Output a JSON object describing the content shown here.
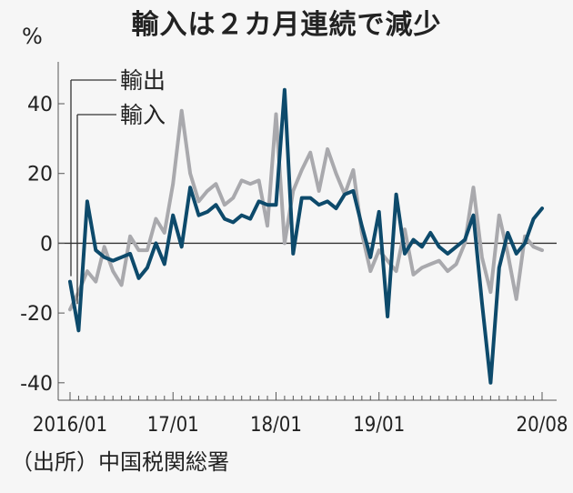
{
  "title": "輸入は２カ月連続で減少",
  "source": "（出所）中国税関総署",
  "chart_data": {
    "type": "line",
    "ylabel": "%",
    "ylim": [
      -45,
      52
    ],
    "yticks": [
      -40,
      -20,
      0,
      20,
      40
    ],
    "ytick_labels": [
      "-40",
      "-20",
      "0",
      "20",
      "40"
    ],
    "xticks": [
      {
        "label": "2016/01",
        "index": 0
      },
      {
        "label": "17/01",
        "index": 12
      },
      {
        "label": "18/01",
        "index": 24
      },
      {
        "label": "19/01",
        "index": 36
      },
      {
        "label": "20/08",
        "index": 55
      }
    ],
    "x": [
      "2016/01",
      "2016/02",
      "2016/03",
      "2016/04",
      "2016/05",
      "2016/06",
      "2016/07",
      "2016/08",
      "2016/09",
      "2016/10",
      "2016/11",
      "2016/12",
      "2017/01",
      "2017/02",
      "2017/03",
      "2017/04",
      "2017/05",
      "2017/06",
      "2017/07",
      "2017/08",
      "2017/09",
      "2017/10",
      "2017/11",
      "2017/12",
      "2018/01",
      "2018/02",
      "2018/03",
      "2018/04",
      "2018/05",
      "2018/06",
      "2018/07",
      "2018/08",
      "2018/09",
      "2018/10",
      "2018/11",
      "2018/12",
      "2019/01",
      "2019/02",
      "2019/03",
      "2019/04",
      "2019/05",
      "2019/06",
      "2019/07",
      "2019/08",
      "2019/09",
      "2019/10",
      "2019/11",
      "2019/12",
      "2020/01",
      "2020/02",
      "2020/03",
      "2020/04",
      "2020/05",
      "2020/06",
      "2020/07",
      "2020/08"
    ],
    "series": [
      {
        "name": "輸出",
        "color": "#0d4a6b",
        "values": [
          -11,
          -25,
          12,
          -2,
          -4,
          -5,
          -4,
          -3,
          -10,
          -7,
          0,
          -6,
          8,
          -1,
          16,
          8,
          9,
          11,
          7,
          6,
          8,
          7,
          12,
          11,
          11,
          44,
          -3,
          13,
          13,
          11,
          12,
          10,
          14,
          15,
          5,
          -4,
          9,
          -21,
          14,
          -3,
          1,
          -1,
          3,
          -1,
          -3,
          -1,
          1,
          8,
          -17,
          -40,
          -7,
          3,
          -3,
          0,
          7,
          10
        ]
      },
      {
        "name": "輸入",
        "color": "#a9a9ad",
        "values": [
          -19,
          -14,
          -8,
          -11,
          -1,
          -8,
          -12,
          2,
          -2,
          -2,
          7,
          3,
          17,
          38,
          20,
          12,
          15,
          17,
          11,
          13,
          18,
          17,
          18,
          5,
          37,
          0,
          15,
          21,
          26,
          15,
          27,
          20,
          14,
          21,
          3,
          -8,
          -2,
          -5,
          -8,
          4,
          -9,
          -7,
          -6,
          -5,
          -8,
          -6,
          0,
          16,
          -4,
          -14,
          8,
          -3,
          -16,
          2,
          -1,
          -2
        ]
      }
    ]
  }
}
